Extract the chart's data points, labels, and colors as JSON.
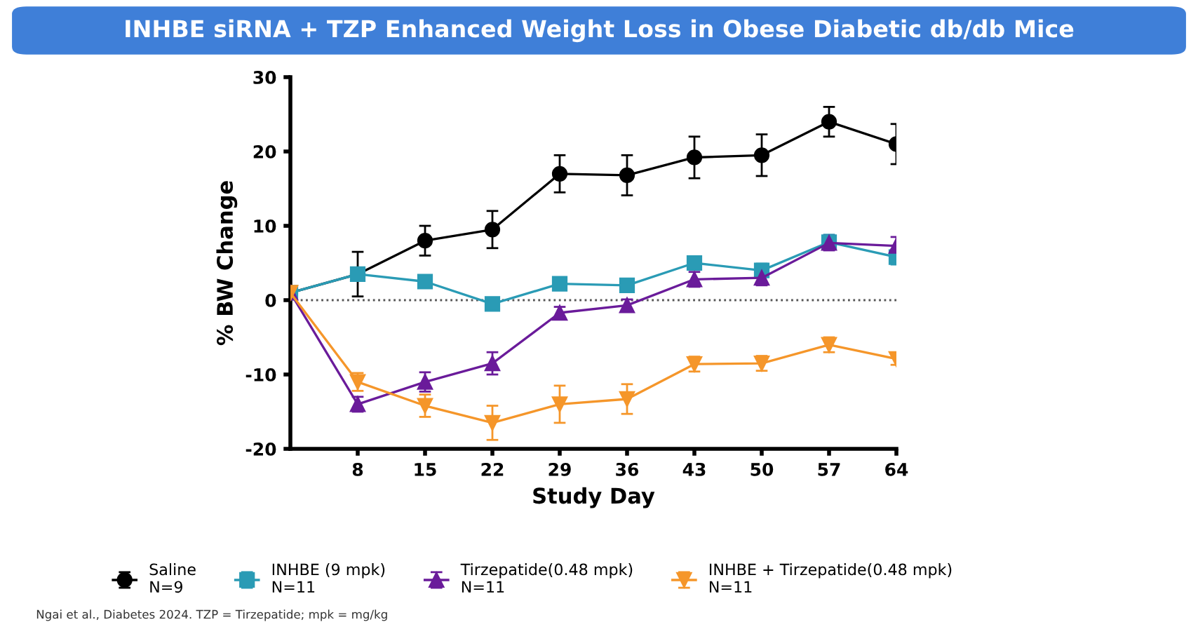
{
  "chart_data": {
    "type": "line",
    "title": "INHBE siRNA + TZP Enhanced Weight Loss in Obese Diabetic db/db Mice",
    "xlabel": "Study Day",
    "ylabel": "% BW Change",
    "x": [
      1,
      8,
      15,
      22,
      29,
      36,
      43,
      50,
      57,
      64
    ],
    "xlim": [
      1,
      64
    ],
    "xticks": [
      8,
      15,
      22,
      29,
      36,
      43,
      50,
      57,
      64
    ],
    "ylim": [
      -20,
      30
    ],
    "yticks": [
      -20,
      -10,
      0,
      10,
      20,
      30
    ],
    "grid": false,
    "legend": "bottom",
    "line_style": "solid",
    "ref_lines": [
      {
        "axis": "y",
        "value": 0,
        "color": "#555555",
        "line_style": "dotted"
      }
    ],
    "series": [
      {
        "name": "Saline\nN=9",
        "color": "#000000",
        "marker": "circle",
        "values": [
          1,
          3.5,
          8,
          9.5,
          17,
          16.8,
          19.2,
          19.5,
          24,
          21
        ],
        "errors": [
          0.5,
          3,
          2,
          2.5,
          2.5,
          2.7,
          2.8,
          2.8,
          2,
          2.7
        ]
      },
      {
        "name": "INHBE (9 mpk)\nN=11",
        "color": "#2a9bb5",
        "marker": "square",
        "values": [
          1,
          3.5,
          2.5,
          -0.5,
          2.2,
          2,
          5,
          4,
          7.8,
          5.8
        ],
        "errors": [
          0.5,
          0.8,
          0.8,
          0.8,
          0.8,
          0.8,
          0.9,
          0.9,
          1,
          1
        ]
      },
      {
        "name": "Tirzepatide(0.48 mpk)\nN=11",
        "color": "#6a1b9a",
        "marker": "triangle",
        "values": [
          1,
          -14,
          -11,
          -8.5,
          -1.7,
          -0.7,
          2.8,
          3,
          7.7,
          7.3
        ],
        "errors": [
          0.5,
          1,
          1.3,
          1.5,
          0.8,
          0.8,
          1,
          1,
          1,
          1.2
        ]
      },
      {
        "name": "INHBE + Tirzepatide(0.48 mpk)\nN=11",
        "color": "#f5962a",
        "marker": "triangle_down",
        "values": [
          1,
          -11,
          -14.2,
          -16.5,
          -14,
          -13.3,
          -8.6,
          -8.5,
          -6,
          -7.9
        ],
        "errors": [
          0.5,
          1.2,
          1.5,
          2.3,
          2.5,
          2,
          1,
          1,
          1,
          0.8
        ]
      }
    ],
    "annotations": [
      "Ngai et al., Diabetes 2024. TZP = Tirzepatide; mpk = mg/kg"
    ]
  }
}
